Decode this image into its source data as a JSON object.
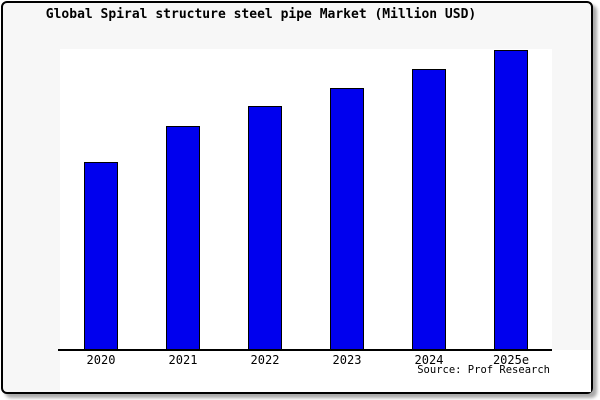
{
  "chart_data": {
    "type": "bar",
    "title": "Global Spiral structure steel pipe Market (Million USD)",
    "categories": [
      "2020",
      "2021",
      "2022",
      "2023",
      "2024",
      "2025e"
    ],
    "values": [
      62.7,
      74.7,
      81.3,
      87.3,
      93.7,
      100
    ],
    "value_note": "No y-axis scale shown in chart; values are estimated bar heights as percent of tallest bar (2025e = 100)",
    "xlabel": "",
    "ylabel": "",
    "ylim": [
      0,
      100
    ],
    "grid": false,
    "legend": false,
    "bar_color": "#0000EE",
    "bar_border_color": "#000000",
    "source": "Source: Prof Research"
  },
  "colors": {
    "figure_background": "#f7f7f7",
    "plot_background": "#ffffff",
    "frame_border": "#000000",
    "axis_line": "#000000",
    "text": "#000000"
  }
}
